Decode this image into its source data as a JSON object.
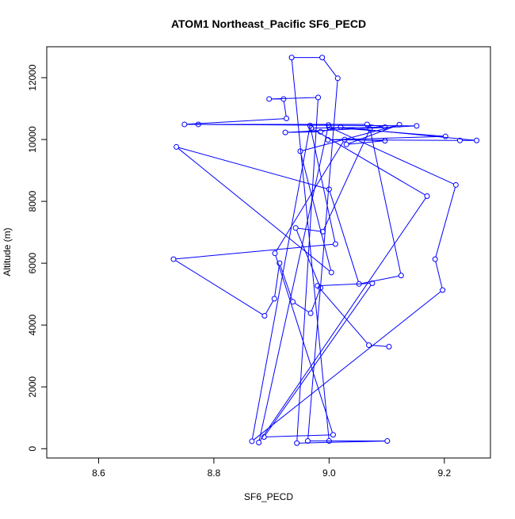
{
  "chart_data": {
    "type": "line",
    "title": "ATOM1 Northeast_Pacific SF6_PECD",
    "xlabel": "SF6_PECD",
    "ylabel": "Altitude (m)",
    "xlim": [
      8.51,
      9.28
    ],
    "ylim": [
      -300,
      13000
    ],
    "xticks": [
      8.6,
      8.8,
      9.0,
      9.2
    ],
    "yticks": [
      0,
      2000,
      4000,
      6000,
      8000,
      10000,
      12000
    ],
    "xtick_labels": [
      "8.6",
      "8.8",
      "9.0",
      "9.2"
    ],
    "ytick_labels": [
      "0",
      "2000",
      "4000",
      "6000",
      "8000",
      "10000",
      "12000"
    ],
    "line_color": "#0000ff",
    "marker": "open-circle",
    "grid": false,
    "legend": "none",
    "series": [
      {
        "x": [
          9.0,
          8.935,
          8.988,
          9.015,
          8.963,
          9.101,
          8.944,
          8.981,
          8.896,
          8.921,
          8.926,
          8.749,
          9.066,
          9.097,
          8.969,
          9.17,
          8.878,
          8.999,
          8.773,
          9.152,
          8.924,
          8.985,
          9.02,
          9.256,
          9.227,
          8.998,
          9.202,
          9.0,
          9.22,
          9.184,
          9.197,
          8.866,
          8.967,
          9.011,
          8.73,
          8.888,
          8.905,
          8.914,
          8.937,
          8.968,
          8.985,
          8.942,
          8.989,
          9.071,
          9.125,
          9.052,
          9.0,
          8.735,
          9.004,
          8.95,
          9.122,
          9.03,
          9.097,
          9.027,
          8.906,
          9.007,
          8.887,
          9.075,
          8.98,
          9.069,
          9.104
        ],
        "y": [
          250,
          12650,
          12650,
          11980,
          250,
          250,
          180,
          11360,
          11310,
          11310,
          10680,
          10490,
          10490,
          10400,
          10370,
          8170,
          200,
          10470,
          10490,
          10440,
          10230,
          10250,
          10400,
          9970,
          9970,
          9990,
          10100,
          10400,
          8530,
          6130,
          5130,
          240,
          10450,
          6620,
          6130,
          4300,
          4850,
          6000,
          4750,
          4380,
          5200,
          7140,
          7020,
          10340,
          5600,
          5330,
          8390,
          9760,
          5700,
          9620,
          10480,
          9840,
          9960,
          10000,
          6320,
          450,
          380,
          5350,
          5270,
          3350,
          3300
        ]
      }
    ]
  }
}
